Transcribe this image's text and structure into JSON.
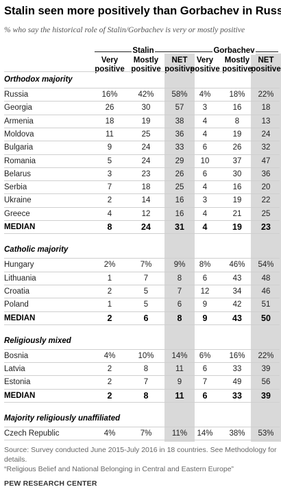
{
  "chart_data": {
    "type": "table",
    "title": "Stalin seen more positively than Gorbachev in Russia",
    "subtitle": "% who say the historical role of Stalin/Gorbachev is very or mostly positive",
    "column_groups": [
      "Stalin",
      "Gorbachev"
    ],
    "columns": [
      [
        "Very",
        "positive"
      ],
      [
        "Mostly",
        "positive"
      ],
      [
        "NET",
        "positive"
      ],
      [
        "Very",
        "positive"
      ],
      [
        "Mostly",
        "positive"
      ],
      [
        "NET",
        "positive"
      ]
    ],
    "sections": [
      {
        "name": "Orthodox majority",
        "rows": [
          {
            "label": "Russia",
            "values": [
              "16%",
              "42%",
              "58%",
              "4%",
              "18%",
              "22%"
            ]
          },
          {
            "label": "Georgia",
            "values": [
              "26",
              "30",
              "57",
              "3",
              "16",
              "18"
            ]
          },
          {
            "label": "Armenia",
            "values": [
              "18",
              "19",
              "38",
              "4",
              "8",
              "13"
            ]
          },
          {
            "label": "Moldova",
            "values": [
              "11",
              "25",
              "36",
              "4",
              "19",
              "24"
            ]
          },
          {
            "label": "Bulgaria",
            "values": [
              "9",
              "24",
              "33",
              "6",
              "26",
              "32"
            ]
          },
          {
            "label": "Romania",
            "values": [
              "5",
              "24",
              "29",
              "10",
              "37",
              "47"
            ]
          },
          {
            "label": "Belarus",
            "values": [
              "3",
              "23",
              "26",
              "6",
              "30",
              "36"
            ]
          },
          {
            "label": "Serbia",
            "values": [
              "7",
              "18",
              "25",
              "4",
              "16",
              "20"
            ]
          },
          {
            "label": "Ukraine",
            "values": [
              "2",
              "14",
              "16",
              "3",
              "19",
              "22"
            ]
          },
          {
            "label": "Greece",
            "values": [
              "4",
              "12",
              "16",
              "4",
              "21",
              "25"
            ]
          },
          {
            "label": "MEDIAN",
            "values": [
              "8",
              "24",
              "31",
              "4",
              "19",
              "23"
            ],
            "median": true
          }
        ]
      },
      {
        "name": "Catholic majority",
        "rows": [
          {
            "label": "Hungary",
            "values": [
              "2%",
              "7%",
              "9%",
              "8%",
              "46%",
              "54%"
            ]
          },
          {
            "label": "Lithuania",
            "values": [
              "1",
              "7",
              "8",
              "6",
              "43",
              "48"
            ]
          },
          {
            "label": "Croatia",
            "values": [
              "2",
              "5",
              "7",
              "12",
              "34",
              "46"
            ]
          },
          {
            "label": "Poland",
            "values": [
              "1",
              "5",
              "6",
              "9",
              "42",
              "51"
            ]
          },
          {
            "label": "MEDIAN",
            "values": [
              "2",
              "6",
              "8",
              "9",
              "43",
              "50"
            ],
            "median": true
          }
        ]
      },
      {
        "name": "Religiously mixed",
        "rows": [
          {
            "label": "Bosnia",
            "values": [
              "4%",
              "10%",
              "14%",
              "6%",
              "16%",
              "22%"
            ]
          },
          {
            "label": "Latvia",
            "values": [
              "2",
              "8",
              "11",
              "6",
              "33",
              "39"
            ]
          },
          {
            "label": "Estonia",
            "values": [
              "2",
              "7",
              "9",
              "7",
              "49",
              "56"
            ]
          },
          {
            "label": "MEDIAN",
            "values": [
              "2",
              "8",
              "11",
              "6",
              "33",
              "39"
            ],
            "median": true
          }
        ]
      },
      {
        "name": "Majority religiously unaffiliated",
        "rows": [
          {
            "label": "Czech Republic",
            "values": [
              "4%",
              "7%",
              "11%",
              "14%",
              "38%",
              "53%"
            ]
          }
        ]
      }
    ],
    "notes": [
      "Source: Survey conducted June 2015-July 2016 in 18 countries. See Methodology for",
      "details.",
      "“Religious Belief and National Belonging in Central and Eastern Europe”"
    ],
    "brand": "PEW RESEARCH CENTER",
    "highlight_color": "#d9d9d9"
  }
}
